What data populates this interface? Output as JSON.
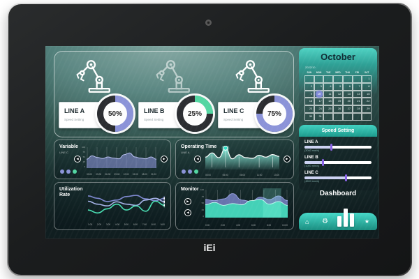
{
  "device": {
    "logo": "iEi"
  },
  "colors": {
    "accent_teal": "#2fbfae",
    "accent_purple": "#8b93d8",
    "accent_green": "#53d6a2"
  },
  "dashboard": {
    "lines": [
      {
        "label": "LINE A",
        "sublabel": "Speed Setting",
        "value": "50%",
        "pct": 50,
        "color": "#8b93d8"
      },
      {
        "label": "LINE B",
        "sublabel": "Speed Setting",
        "value": "25%",
        "pct": 25,
        "color": "#53d6a2"
      },
      {
        "label": "LINE C",
        "sublabel": "Speed Setting",
        "value": "75%",
        "pct": 75,
        "color": "#8b93d8"
      }
    ],
    "panels": {
      "variable": {
        "title": "Variable",
        "subtitle": "LINE C"
      },
      "operating_time": {
        "title": "Operating Time",
        "subtitle": "LINE A"
      },
      "utilization_rate": {
        "title": "Utilization Rate"
      },
      "monitor": {
        "title": "Monitor"
      }
    },
    "dashboard_label": "Dashboard"
  },
  "chart_data": [
    {
      "id": "variable",
      "type": "area",
      "title": "Variable",
      "series": [
        {
          "name": "LINE C",
          "color": "#8b93d8",
          "values": [
            40,
            55,
            48,
            43,
            50,
            45,
            42,
            60,
            68,
            50,
            45,
            42,
            50,
            40
          ]
        }
      ],
      "xticks": [
        "00:00",
        "03:00",
        "06:00",
        "09:00",
        "12:00",
        "15:00",
        "18:00",
        "21:00"
      ],
      "yticks": [
        "100",
        "75",
        "50",
        "25",
        "0"
      ],
      "grid": true
    },
    {
      "id": "operating_time",
      "type": "area",
      "title": "Operating Time",
      "series": [
        {
          "name": "LINE A",
          "color": "#6fe8d4",
          "values": [
            52,
            70,
            50,
            90,
            45,
            62,
            50,
            47,
            60,
            52,
            63,
            55
          ]
        }
      ],
      "peak_index": 3,
      "dropline_indices": [
        1,
        3,
        5,
        8,
        10
      ],
      "xticks": [
        "00:00",
        "05:00",
        "08:00",
        "11:00",
        "13:00"
      ],
      "grid": false
    },
    {
      "id": "utilization_rate",
      "type": "line",
      "title": "Utilization Rate",
      "series": [
        {
          "color": "#7d88cf",
          "values": [
            74,
            66,
            55,
            60,
            72,
            76,
            64,
            58,
            66
          ]
        },
        {
          "color": "#a7b4ea",
          "values": [
            56,
            46,
            40,
            54,
            46,
            42,
            60,
            66,
            54
          ]
        },
        {
          "color": "#4ae0b4",
          "values": [
            26,
            16,
            30,
            46,
            26,
            40,
            22,
            56,
            42
          ]
        }
      ],
      "xticks": [
        "1:00",
        "2:00",
        "3:00",
        "4:00",
        "5:00",
        "6:00",
        "7:00",
        "8:00",
        "9:00"
      ],
      "grid": false
    },
    {
      "id": "monitor",
      "type": "stacked-area",
      "title": "Monitor",
      "series": [
        {
          "color": "#7d88cf",
          "values": [
            62,
            58,
            64,
            82,
            60,
            55,
            70,
            62,
            74,
            58
          ]
        },
        {
          "color": "#40dcb8",
          "values": [
            44,
            52,
            42,
            48,
            44,
            58,
            62,
            46,
            55,
            42
          ]
        }
      ],
      "highlight": [
        0.7,
        0.92
      ],
      "xticks": [
        "0:00",
        "2:00",
        "4:00",
        "6:00",
        "8:00",
        "10:00"
      ],
      "yticks": [
        "100",
        "75",
        "50",
        "25",
        "0"
      ],
      "grid": true
    }
  ],
  "calendar": {
    "month": "October",
    "year_month": "2022/10",
    "weekdays": [
      "SUN",
      "MON",
      "TUE",
      "WED",
      "THU",
      "FRI",
      "SAT"
    ],
    "days": [
      "",
      "",
      "",
      "",
      "",
      "",
      "1",
      "2",
      "3",
      "4",
      "5",
      "6",
      "7",
      "8",
      "9",
      "10",
      "11",
      "12",
      "13",
      "14",
      "15",
      "16",
      "17",
      "18",
      "19",
      "20",
      "21",
      "22",
      "23",
      "24",
      "25",
      "26",
      "27",
      "28",
      "29",
      "30",
      "31",
      "",
      "",
      "",
      "",
      ""
    ],
    "selected_day": "10"
  },
  "speed_setting": {
    "title": "Speed Setting",
    "sliders": [
      {
        "label": "LINE A",
        "caption": "(3000 mm/s)",
        "pct": 40
      },
      {
        "label": "LINE B",
        "caption": "(1000 mm/s)",
        "pct": 28
      },
      {
        "label": "LINE C",
        "caption": "(4500 mm/s)",
        "pct": 62
      }
    ]
  },
  "nav": {
    "icons": [
      "home",
      "gear",
      "bar-chart",
      "star"
    ]
  }
}
